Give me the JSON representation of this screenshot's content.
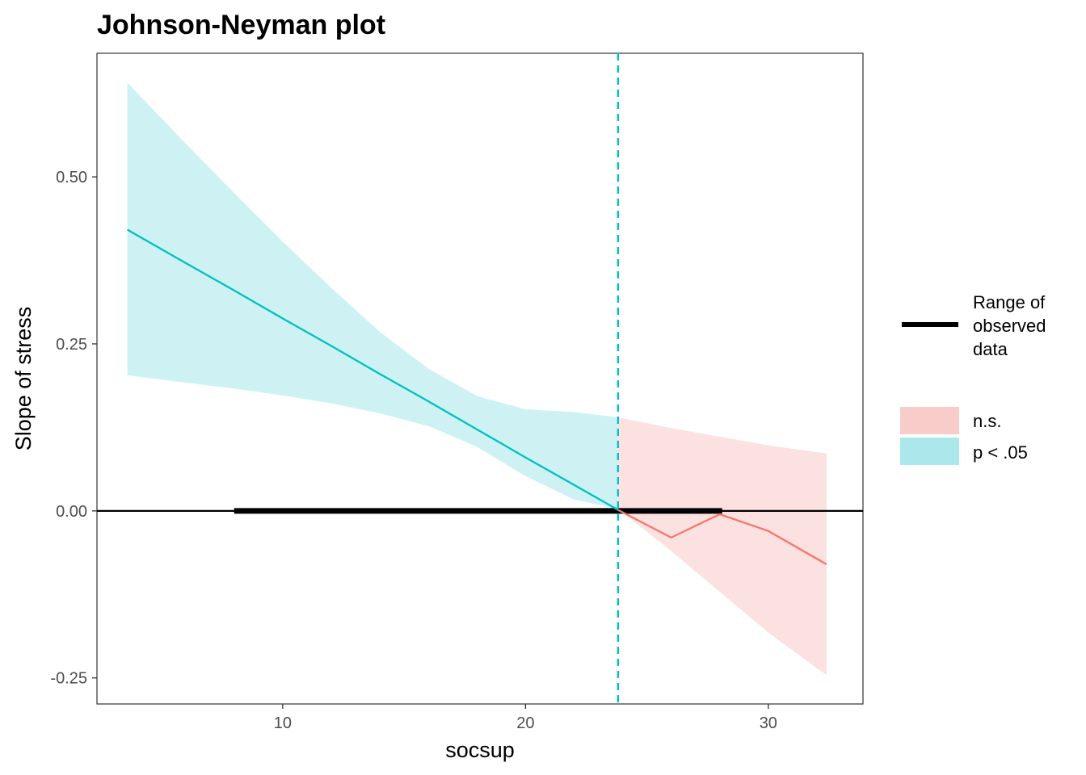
{
  "chart_data": {
    "type": "line",
    "title": "Johnson-Neyman plot",
    "xlabel": "socsup",
    "ylabel": "Slope of stress",
    "xlim": [
      2.35,
      33.9
    ],
    "ylim": [
      -0.289,
      0.685
    ],
    "x_ticks": [
      10,
      20,
      30
    ],
    "y_ticks": [
      -0.25,
      0.0,
      0.25,
      0.5
    ],
    "x_tick_labels": [
      "10",
      "20",
      "30"
    ],
    "y_tick_labels": [
      "-0.25",
      "0.00",
      "0.25",
      "0.50"
    ],
    "grid": false,
    "legend_position": "right",
    "jn_point": 23.81,
    "observed_range": [
      8.0,
      28.1
    ],
    "series": [
      {
        "name": "p < .05",
        "color": "#00BFC4",
        "fill": "#A5E7EA",
        "x": [
          3.6,
          6,
          8,
          10,
          12,
          14,
          16,
          18,
          20,
          22,
          23.81
        ],
        "slope": [
          0.421,
          0.371,
          0.33,
          0.288,
          0.247,
          0.205,
          0.164,
          0.122,
          0.08,
          0.039,
          0.0015
        ],
        "upper": [
          0.641,
          0.55,
          0.476,
          0.403,
          0.334,
          0.268,
          0.213,
          0.172,
          0.152,
          0.148,
          0.14
        ],
        "lower": [
          0.203,
          0.192,
          0.183,
          0.173,
          0.161,
          0.146,
          0.127,
          0.096,
          0.052,
          0.017,
          0.003
        ]
      },
      {
        "name": "n.s.",
        "color": "#F8766D",
        "fill": "#F8C9C6",
        "x": [
          23.81,
          26,
          28,
          30,
          32.4
        ],
        "slope": [
          0.0015,
          -0.04,
          -0.005,
          -0.03,
          -0.08
        ],
        "upper": [
          0.14,
          0.124,
          0.111,
          0.098,
          0.086
        ],
        "lower": [
          0.003,
          -0.06,
          -0.121,
          -0.182,
          -0.246
        ]
      }
    ],
    "legend": {
      "line_label_lines": [
        "Range of",
        "observed",
        "data"
      ],
      "ns_label": "n.s.",
      "sig_label": "p < .05"
    }
  }
}
